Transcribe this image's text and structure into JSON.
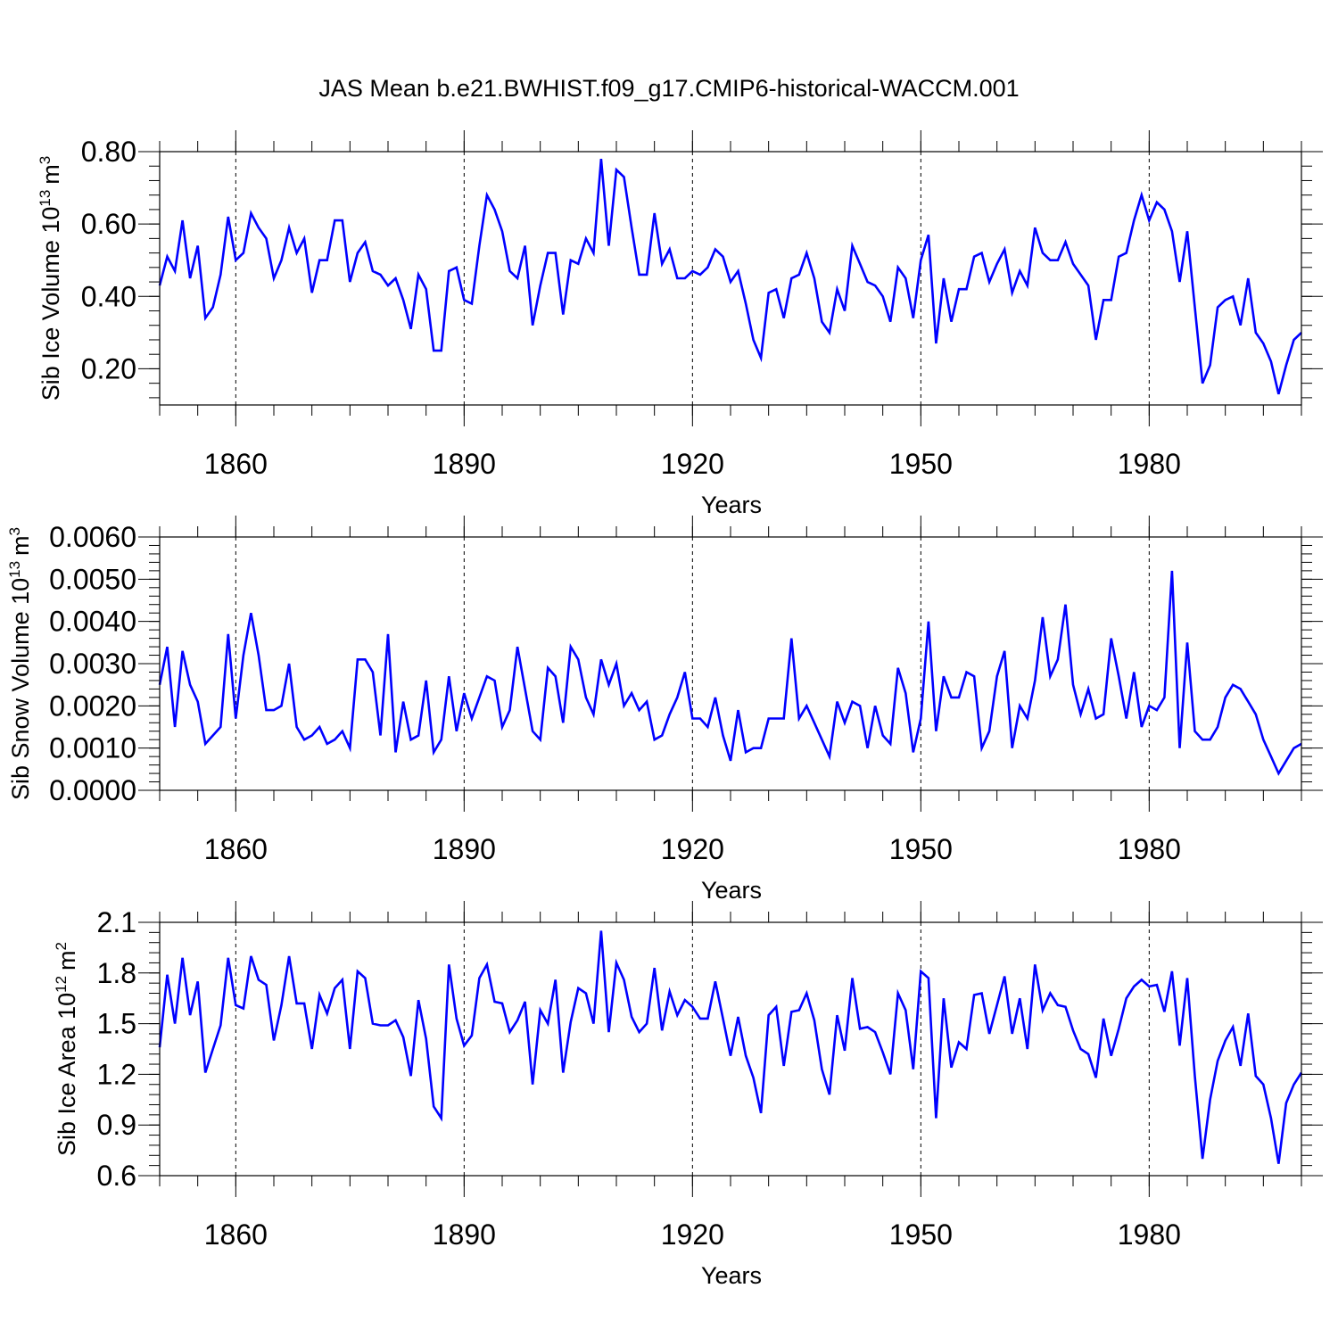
{
  "title": "JAS Mean b.e21.BWHIST.f09_g17.CMIP6-historical-WACCM.001",
  "colors": {
    "series": "#0000ff",
    "axis": "#000000",
    "grid": "#000000"
  },
  "chart_data": [
    {
      "type": "line",
      "title": "JAS Mean b.e21.BWHIST.f09_g17.CMIP6-historical-WACCM.001",
      "xlabel": "Years",
      "ylabel": "Sib Ice Volume 10",
      "ylabel_exp": "13",
      "ylabel_unit": "m",
      "ylabel_unit_exp": "3",
      "x_start": 1850,
      "x_step": 1,
      "xlim": [
        1850,
        2000
      ],
      "ylim": [
        0.1,
        0.8
      ],
      "yticks": [
        0.2,
        0.4,
        0.6,
        0.8
      ],
      "ytick_labels": [
        "0.20",
        "0.40",
        "0.60",
        "0.80"
      ],
      "xticks": [
        1860,
        1890,
        1920,
        1950,
        1980
      ],
      "xtick_labels": [
        "1860",
        "1890",
        "1920",
        "1950",
        "1980"
      ],
      "grid_x": [
        1860,
        1890,
        1920,
        1950,
        1980
      ],
      "series": [
        {
          "name": "Sib Ice Volume",
          "values": [
            0.43,
            0.51,
            0.47,
            0.61,
            0.45,
            0.54,
            0.34,
            0.37,
            0.46,
            0.62,
            0.5,
            0.52,
            0.63,
            0.59,
            0.56,
            0.45,
            0.5,
            0.59,
            0.52,
            0.56,
            0.41,
            0.5,
            0.5,
            0.61,
            0.61,
            0.44,
            0.52,
            0.55,
            0.47,
            0.46,
            0.43,
            0.45,
            0.39,
            0.31,
            0.46,
            0.42,
            0.25,
            0.25,
            0.47,
            0.48,
            0.39,
            0.38,
            0.54,
            0.68,
            0.64,
            0.58,
            0.47,
            0.45,
            0.54,
            0.32,
            0.43,
            0.52,
            0.52,
            0.35,
            0.5,
            0.49,
            0.56,
            0.52,
            0.78,
            0.54,
            0.75,
            0.73,
            0.59,
            0.46,
            0.46,
            0.63,
            0.49,
            0.53,
            0.45,
            0.45,
            0.47,
            0.46,
            0.48,
            0.53,
            0.51,
            0.44,
            0.47,
            0.38,
            0.28,
            0.23,
            0.41,
            0.42,
            0.34,
            0.45,
            0.46,
            0.52,
            0.45,
            0.33,
            0.3,
            0.42,
            0.36,
            0.54,
            0.49,
            0.44,
            0.43,
            0.4,
            0.33,
            0.48,
            0.45,
            0.34,
            0.5,
            0.57,
            0.27,
            0.45,
            0.33,
            0.42,
            0.42,
            0.51,
            0.52,
            0.44,
            0.49,
            0.53,
            0.41,
            0.47,
            0.43,
            0.59,
            0.52,
            0.5,
            0.5,
            0.55,
            0.49,
            0.46,
            0.43,
            0.28,
            0.39,
            0.39,
            0.51,
            0.52,
            0.61,
            0.68,
            0.61,
            0.66,
            0.64,
            0.58,
            0.44,
            0.58,
            0.37,
            0.16,
            0.21,
            0.37,
            0.39,
            0.4,
            0.32,
            0.45,
            0.3,
            0.27,
            0.22,
            0.13,
            0.21,
            0.28,
            0.3
          ]
        }
      ]
    },
    {
      "type": "line",
      "xlabel": "Years",
      "ylabel": "Sib Snow Volume 10",
      "ylabel_exp": "13",
      "ylabel_unit": "m",
      "ylabel_unit_exp": "3",
      "x_start": 1850,
      "x_step": 1,
      "xlim": [
        1850,
        2000
      ],
      "ylim": [
        0.0,
        0.006
      ],
      "yticks": [
        0.0,
        0.001,
        0.002,
        0.003,
        0.004,
        0.005,
        0.006
      ],
      "ytick_labels": [
        "0.0000",
        "0.0010",
        "0.0020",
        "0.0030",
        "0.0040",
        "0.0050",
        "0.0060"
      ],
      "xticks": [
        1860,
        1890,
        1920,
        1950,
        1980
      ],
      "xtick_labels": [
        "1860",
        "1890",
        "1920",
        "1950",
        "1980"
      ],
      "grid_x": [
        1860,
        1890,
        1920,
        1950,
        1980
      ],
      "series": [
        {
          "name": "Sib Snow Volume",
          "values": [
            0.0025,
            0.0034,
            0.0015,
            0.0033,
            0.0025,
            0.0021,
            0.0011,
            0.0013,
            0.0015,
            0.0037,
            0.0017,
            0.0032,
            0.0042,
            0.0032,
            0.0019,
            0.0019,
            0.002,
            0.003,
            0.0015,
            0.0012,
            0.0013,
            0.0015,
            0.0011,
            0.0012,
            0.0014,
            0.001,
            0.0031,
            0.0031,
            0.0028,
            0.0013,
            0.0037,
            0.0009,
            0.0021,
            0.0012,
            0.0013,
            0.0026,
            0.0009,
            0.0012,
            0.0027,
            0.0014,
            0.0023,
            0.0017,
            0.0022,
            0.0027,
            0.0026,
            0.0015,
            0.0019,
            0.0034,
            0.0024,
            0.0014,
            0.0012,
            0.0029,
            0.0027,
            0.0016,
            0.0034,
            0.0031,
            0.0022,
            0.0018,
            0.0031,
            0.0025,
            0.003,
            0.002,
            0.0023,
            0.0019,
            0.0021,
            0.0012,
            0.0013,
            0.0018,
            0.0022,
            0.0028,
            0.0017,
            0.0017,
            0.0015,
            0.0022,
            0.0013,
            0.0007,
            0.0019,
            0.0009,
            0.001,
            0.001,
            0.0017,
            0.0017,
            0.0017,
            0.0036,
            0.0017,
            0.002,
            0.0016,
            0.0012,
            0.0008,
            0.0021,
            0.0016,
            0.0021,
            0.002,
            0.001,
            0.002,
            0.0013,
            0.0011,
            0.0029,
            0.0023,
            0.0009,
            0.0017,
            0.004,
            0.0014,
            0.0027,
            0.0022,
            0.0022,
            0.0028,
            0.0027,
            0.001,
            0.0014,
            0.0027,
            0.0033,
            0.001,
            0.002,
            0.0017,
            0.0026,
            0.0041,
            0.0027,
            0.0031,
            0.0044,
            0.0025,
            0.0018,
            0.0024,
            0.0017,
            0.0018,
            0.0036,
            0.0027,
            0.0017,
            0.0028,
            0.0015,
            0.002,
            0.0019,
            0.0022,
            0.0052,
            0.001,
            0.0035,
            0.0014,
            0.0012,
            0.0012,
            0.0015,
            0.0022,
            0.0025,
            0.0024,
            0.0021,
            0.0018,
            0.0012,
            0.0008,
            0.0004,
            0.0007,
            0.001,
            0.0011
          ]
        }
      ]
    },
    {
      "type": "line",
      "xlabel": "Years",
      "ylabel": "Sib Ice Area 10",
      "ylabel_exp": "12",
      "ylabel_unit": "m",
      "ylabel_unit_exp": "2",
      "x_start": 1850,
      "x_step": 1,
      "xlim": [
        1850,
        2000
      ],
      "ylim": [
        0.6,
        2.1
      ],
      "yticks": [
        0.6,
        0.9,
        1.2,
        1.5,
        1.8,
        2.1
      ],
      "ytick_labels": [
        "0.6",
        "0.9",
        "1.2",
        "1.5",
        "1.8",
        "2.1"
      ],
      "xticks": [
        1860,
        1890,
        1920,
        1950,
        1980
      ],
      "xtick_labels": [
        "1860",
        "1890",
        "1920",
        "1950",
        "1980"
      ],
      "grid_x": [
        1860,
        1890,
        1920,
        1950,
        1980
      ],
      "series": [
        {
          "name": "Sib Ice Area",
          "values": [
            1.36,
            1.79,
            1.5,
            1.89,
            1.55,
            1.75,
            1.21,
            1.35,
            1.49,
            1.89,
            1.61,
            1.59,
            1.9,
            1.76,
            1.73,
            1.4,
            1.61,
            1.9,
            1.62,
            1.62,
            1.35,
            1.67,
            1.56,
            1.71,
            1.76,
            1.35,
            1.81,
            1.77,
            1.5,
            1.49,
            1.49,
            1.52,
            1.42,
            1.19,
            1.64,
            1.41,
            1.01,
            0.94,
            1.85,
            1.53,
            1.37,
            1.43,
            1.77,
            1.85,
            1.63,
            1.62,
            1.45,
            1.52,
            1.63,
            1.14,
            1.58,
            1.5,
            1.76,
            1.21,
            1.51,
            1.71,
            1.68,
            1.5,
            2.05,
            1.45,
            1.86,
            1.76,
            1.54,
            1.45,
            1.5,
            1.83,
            1.46,
            1.69,
            1.55,
            1.64,
            1.6,
            1.53,
            1.53,
            1.75,
            1.53,
            1.31,
            1.54,
            1.31,
            1.18,
            0.97,
            1.55,
            1.6,
            1.25,
            1.57,
            1.58,
            1.68,
            1.52,
            1.23,
            1.08,
            1.55,
            1.34,
            1.77,
            1.47,
            1.48,
            1.45,
            1.33,
            1.2,
            1.68,
            1.58,
            1.23,
            1.81,
            1.77,
            0.94,
            1.65,
            1.24,
            1.39,
            1.35,
            1.67,
            1.68,
            1.44,
            1.61,
            1.78,
            1.44,
            1.65,
            1.35,
            1.85,
            1.58,
            1.68,
            1.61,
            1.6,
            1.46,
            1.35,
            1.32,
            1.18,
            1.53,
            1.31,
            1.47,
            1.65,
            1.72,
            1.76,
            1.72,
            1.73,
            1.57,
            1.81,
            1.37,
            1.77,
            1.19,
            0.7,
            1.05,
            1.28,
            1.4,
            1.48,
            1.25,
            1.56,
            1.19,
            1.14,
            0.94,
            0.67,
            1.03,
            1.14,
            1.21
          ]
        }
      ]
    }
  ]
}
